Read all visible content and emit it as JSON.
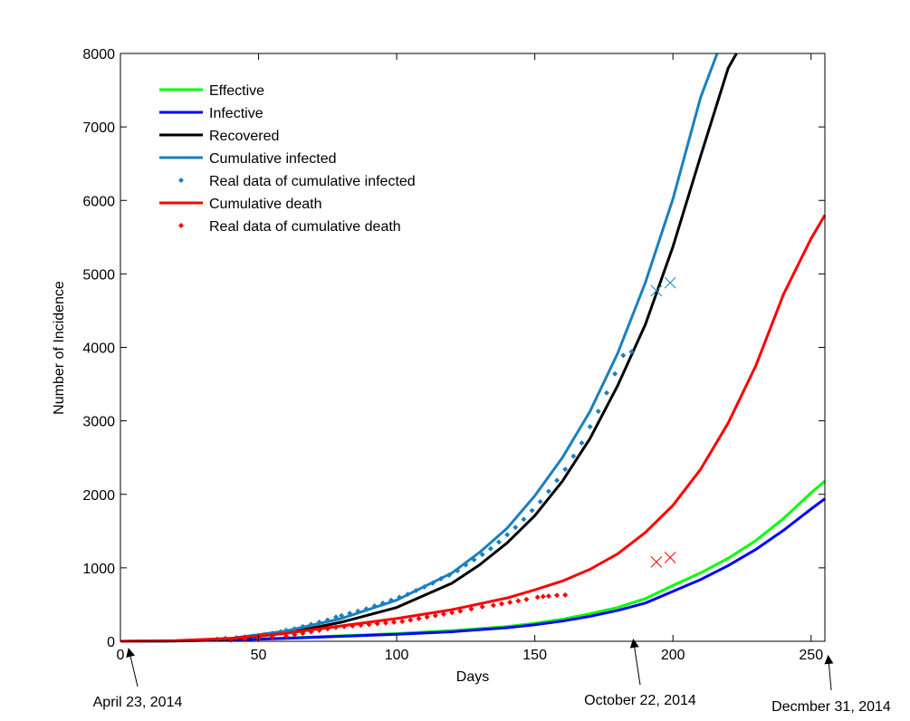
{
  "chart_data": {
    "type": "line",
    "title": "",
    "xlabel": "Days",
    "ylabel": "Number of Incidence",
    "xlim": [
      0,
      255
    ],
    "ylim": [
      0,
      8000
    ],
    "xticks": [
      0,
      50,
      100,
      150,
      200,
      250
    ],
    "yticks": [
      0,
      1000,
      2000,
      3000,
      4000,
      5000,
      6000,
      7000,
      8000
    ],
    "grid": false,
    "legend_position": "top-left",
    "series": [
      {
        "name": "Effective",
        "kind": "line",
        "color": "#00ff00",
        "x": [
          0,
          20,
          40,
          60,
          80,
          100,
          120,
          140,
          150,
          160,
          170,
          180,
          190,
          200,
          210,
          220,
          230,
          240,
          250,
          255
        ],
        "y": [
          0,
          5,
          20,
          45,
          75,
          105,
          145,
          200,
          245,
          300,
          375,
          460,
          580,
          760,
          930,
          1130,
          1370,
          1670,
          2020,
          2180
        ]
      },
      {
        "name": "Infective",
        "kind": "line",
        "color": "#0000ff",
        "x": [
          0,
          20,
          40,
          60,
          80,
          100,
          120,
          140,
          150,
          160,
          170,
          180,
          190,
          200,
          210,
          220,
          230,
          240,
          250,
          255
        ],
        "y": [
          0,
          4,
          18,
          40,
          68,
          95,
          130,
          185,
          225,
          275,
          340,
          420,
          520,
          680,
          840,
          1030,
          1250,
          1510,
          1800,
          1940
        ]
      },
      {
        "name": "Recovered",
        "kind": "line",
        "color": "#000000",
        "x": [
          0,
          20,
          40,
          60,
          80,
          100,
          120,
          130,
          140,
          150,
          160,
          170,
          180,
          190,
          200,
          210,
          220,
          223
        ],
        "y": [
          0,
          5,
          30,
          110,
          260,
          460,
          790,
          1040,
          1340,
          1710,
          2180,
          2760,
          3480,
          4310,
          5370,
          6600,
          7800,
          8000
        ]
      },
      {
        "name": "Cumulative infected",
        "kind": "line",
        "color": "#1a80c0",
        "x": [
          0,
          20,
          40,
          60,
          80,
          100,
          120,
          130,
          140,
          150,
          160,
          170,
          180,
          190,
          200,
          210,
          216
        ],
        "y": [
          0,
          6,
          40,
          140,
          310,
          560,
          930,
          1210,
          1540,
          1980,
          2500,
          3130,
          3920,
          4880,
          6020,
          7400,
          8000
        ]
      },
      {
        "name": "Real data of cumulative infected",
        "kind": "dots",
        "color": "#1a80c0",
        "x": [
          35,
          38,
          42,
          45,
          48,
          52,
          55,
          58,
          60,
          63,
          66,
          69,
          72,
          75,
          78,
          80,
          83,
          86,
          89,
          92,
          95,
          98,
          101,
          104,
          107,
          110,
          113,
          116,
          119,
          122,
          125,
          128,
          131,
          134,
          137,
          140,
          143,
          146,
          149,
          152,
          155,
          158,
          161,
          164,
          167,
          170,
          173,
          176,
          179,
          182,
          185
        ],
        "y": [
          30,
          40,
          50,
          60,
          70,
          90,
          110,
          130,
          150,
          170,
          200,
          230,
          260,
          290,
          330,
          350,
          380,
          410,
          440,
          480,
          520,
          560,
          600,
          640,
          690,
          740,
          790,
          850,
          900,
          960,
          1040,
          1110,
          1180,
          1260,
          1350,
          1450,
          1550,
          1660,
          1780,
          1900,
          2040,
          2190,
          2340,
          2520,
          2700,
          2920,
          3130,
          3380,
          3640,
          3890,
          3940
        ]
      },
      {
        "name": "Cumulative death",
        "kind": "line",
        "color": "#ff0000",
        "x": [
          0,
          20,
          40,
          60,
          80,
          100,
          120,
          140,
          150,
          160,
          170,
          180,
          190,
          200,
          210,
          220,
          230,
          240,
          250,
          255
        ],
        "y": [
          0,
          10,
          40,
          110,
          210,
          310,
          430,
          590,
          700,
          820,
          980,
          1190,
          1480,
          1850,
          2340,
          2970,
          3750,
          4720,
          5480,
          5800
        ]
      },
      {
        "name": "Real data of cumulative death",
        "kind": "dots",
        "color": "#ff0000",
        "x": [
          40,
          45,
          50,
          55,
          60,
          63,
          66,
          69,
          72,
          75,
          78,
          81,
          84,
          87,
          90,
          93,
          96,
          99,
          102,
          105,
          108,
          111,
          114,
          117,
          120,
          123,
          127,
          131,
          135,
          138,
          141,
          144,
          147,
          151,
          153,
          155,
          158,
          161
        ],
        "y": [
          20,
          30,
          40,
          60,
          70,
          90,
          110,
          130,
          150,
          170,
          190,
          200,
          210,
          220,
          230,
          240,
          250,
          260,
          270,
          290,
          310,
          330,
          350,
          370,
          390,
          410,
          440,
          470,
          490,
          510,
          530,
          550,
          570,
          600,
          610,
          615,
          625,
          630
        ]
      },
      {
        "name": "",
        "kind": "crosses",
        "color": "#1a80c0",
        "x": [
          194,
          199
        ],
        "y": [
          4770,
          4880
        ]
      },
      {
        "name": "",
        "kind": "crosses",
        "color": "#ff0000",
        "x": [
          194,
          199
        ],
        "y": [
          1080,
          1140
        ]
      }
    ],
    "annotations": [
      {
        "text": "April 23, 2014",
        "x": 0
      },
      {
        "text": "October 22, 2014",
        "x": 187
      },
      {
        "text": "Decmber 31, 2014",
        "x": 255
      }
    ]
  }
}
